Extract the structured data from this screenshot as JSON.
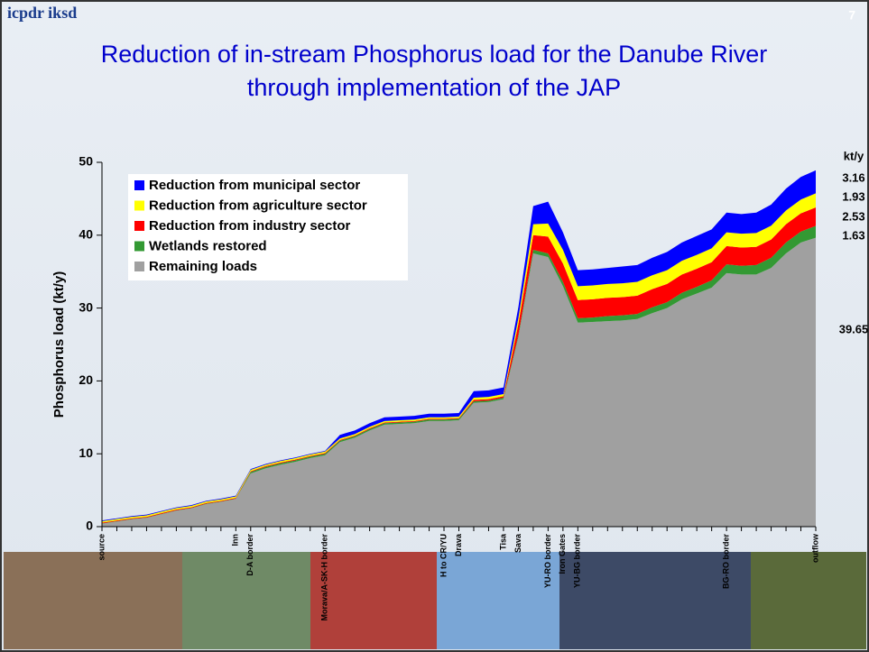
{
  "logo": "icpdr iksd",
  "page_number": "7",
  "chart_data": {
    "type": "stacked_area",
    "title": "Reduction of in-stream Phosphorus load for the Danube River through implementation of the JAP",
    "y_label": "Phosphorus load (kt/y)",
    "unit_label": "kt/y",
    "categories": [
      "source",
      null,
      null,
      null,
      null,
      null,
      null,
      null,
      null,
      "Inn",
      "D-A border",
      null,
      null,
      null,
      null,
      "Morava/A-SK-H border",
      null,
      null,
      null,
      null,
      null,
      null,
      null,
      "H to CR/YU",
      "Drava",
      null,
      null,
      "Tisa",
      "Sava",
      null,
      "YU-RO border",
      "Iron Gates",
      "YU-BG border",
      null,
      null,
      null,
      null,
      null,
      null,
      null,
      null,
      null,
      "BG-RO border",
      null,
      null,
      null,
      null,
      null,
      "outflow"
    ],
    "series": [
      {
        "name": "Remaining loads",
        "color": "#a0a0a0",
        "values": [
          0.4,
          0.7,
          1.0,
          1.2,
          1.7,
          2.2,
          2.5,
          3.1,
          3.4,
          3.8,
          7.3,
          8.0,
          8.5,
          8.9,
          9.4,
          9.8,
          11.6,
          12.2,
          13.2,
          14.0,
          14.1,
          14.2,
          14.5,
          14.5,
          14.6,
          17.0,
          17.1,
          17.5,
          26.0,
          37.5,
          37.0,
          33.0,
          28.0,
          28.1,
          28.2,
          28.3,
          28.5,
          29.3,
          30.0,
          31.2,
          32.0,
          32.8,
          34.8,
          34.6,
          34.6,
          35.5,
          37.5,
          39.0,
          39.65
        ]
      },
      {
        "name": "Wetlands restored",
        "color": "#339933",
        "values": [
          0.05,
          0.05,
          0.05,
          0.05,
          0.05,
          0.05,
          0.05,
          0.05,
          0.05,
          0.05,
          0.2,
          0.2,
          0.2,
          0.2,
          0.2,
          0.2,
          0.2,
          0.2,
          0.2,
          0.2,
          0.2,
          0.2,
          0.2,
          0.2,
          0.2,
          0.2,
          0.2,
          0.2,
          0.3,
          0.5,
          0.5,
          0.6,
          0.6,
          0.6,
          0.7,
          0.7,
          0.7,
          0.8,
          0.8,
          0.9,
          0.9,
          1.0,
          1.2,
          1.2,
          1.3,
          1.4,
          1.5,
          1.5,
          1.63
        ]
      },
      {
        "name": "Reduction from industry sector",
        "color": "#ff0000",
        "values": [
          0.1,
          0.1,
          0.1,
          0.1,
          0.1,
          0.1,
          0.1,
          0.1,
          0.1,
          0.1,
          0.1,
          0.1,
          0.1,
          0.1,
          0.1,
          0.1,
          0.1,
          0.1,
          0.1,
          0.1,
          0.1,
          0.1,
          0.1,
          0.1,
          0.1,
          0.2,
          0.2,
          0.2,
          1.5,
          2.0,
          2.3,
          2.5,
          2.5,
          2.5,
          2.5,
          2.5,
          2.5,
          2.5,
          2.5,
          2.5,
          2.5,
          2.5,
          2.5,
          2.5,
          2.5,
          2.5,
          2.5,
          2.5,
          2.53
        ]
      },
      {
        "name": "Reduction from agriculture sector",
        "color": "#ffff00",
        "values": [
          0.2,
          0.2,
          0.2,
          0.2,
          0.2,
          0.2,
          0.2,
          0.2,
          0.2,
          0.2,
          0.2,
          0.2,
          0.2,
          0.2,
          0.2,
          0.2,
          0.2,
          0.2,
          0.2,
          0.2,
          0.2,
          0.2,
          0.2,
          0.2,
          0.2,
          0.3,
          0.3,
          0.3,
          0.8,
          1.5,
          1.8,
          1.9,
          1.9,
          1.9,
          1.9,
          1.9,
          1.9,
          1.9,
          1.9,
          1.9,
          1.9,
          1.9,
          1.9,
          1.9,
          1.9,
          1.9,
          1.9,
          1.9,
          1.93
        ]
      },
      {
        "name": "Reduction from municipal sector",
        "color": "#0000ff",
        "values": [
          0.1,
          0.1,
          0.1,
          0.1,
          0.1,
          0.1,
          0.1,
          0.1,
          0.1,
          0.1,
          0.1,
          0.1,
          0.1,
          0.1,
          0.1,
          0.1,
          0.5,
          0.5,
          0.5,
          0.5,
          0.5,
          0.5,
          0.5,
          0.5,
          0.5,
          0.9,
          0.9,
          0.9,
          1.5,
          2.5,
          3.0,
          2.4,
          2.2,
          2.2,
          2.2,
          2.3,
          2.3,
          2.4,
          2.5,
          2.5,
          2.6,
          2.6,
          2.7,
          2.7,
          2.8,
          2.9,
          3.0,
          3.1,
          3.16
        ]
      }
    ],
    "ylim": [
      0,
      50
    ],
    "yticks": [
      0,
      10,
      20,
      30,
      40,
      50
    ],
    "grid": false,
    "legend": "upper left"
  }
}
